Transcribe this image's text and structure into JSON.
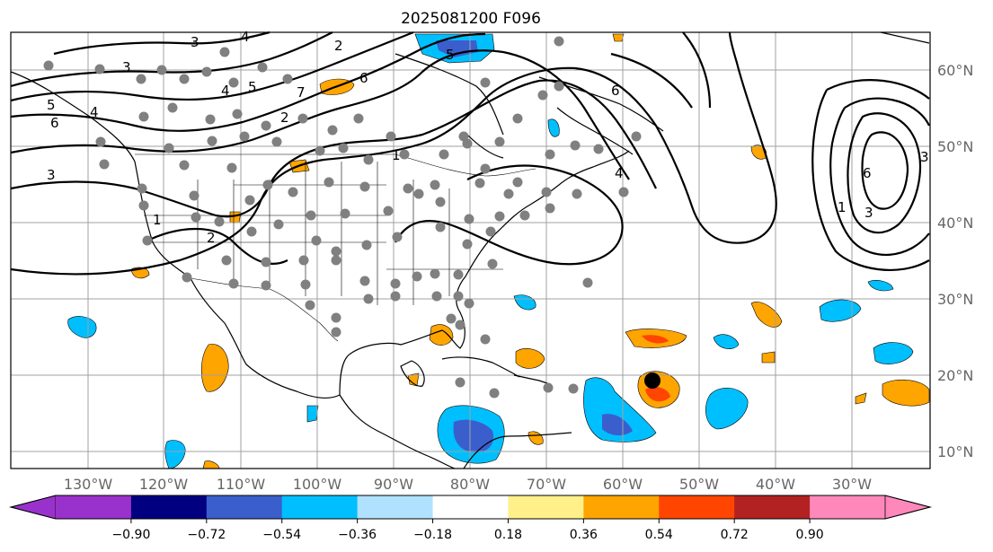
{
  "title": "2025081200 F096",
  "lon_labels": [
    "130°W",
    "120°W",
    "110°W",
    "100°W",
    "90°W",
    "80°W",
    "70°W",
    "60°W",
    "50°W",
    "40°W",
    "30°W"
  ],
  "lat_labels": [
    "60°N",
    "50°N",
    "40°N",
    "30°N",
    "20°N",
    "10°N"
  ],
  "colorbar": {
    "colors": [
      "#9932cc",
      "#000080",
      "#3a5fcd",
      "#00bfff",
      "#b0e2ff",
      "#ffffff",
      "#fff08a",
      "#ffa500",
      "#ff4500",
      "#b22222",
      "#ff88bb"
    ],
    "under_color": "#9932cc",
    "over_color": "#ff88bb",
    "tick_labels": [
      "−0.90",
      "−0.72",
      "−0.54",
      "−0.36",
      "−0.18",
      "0.18",
      "0.36",
      "0.54",
      "0.72",
      "0.90"
    ]
  },
  "contour_labels": [
    "3",
    "4",
    "2",
    "3",
    "6",
    "5",
    "4",
    "5",
    "7",
    "6",
    "5",
    "4",
    "3",
    "2",
    "1",
    "1",
    "2",
    "6",
    "3",
    "3",
    "1",
    "6",
    "4"
  ],
  "colors": {
    "blue": "#00bfff",
    "darkblue": "#3a5fcd",
    "orange": "#ffa500",
    "red": "#ff4500",
    "station": "#808080"
  }
}
